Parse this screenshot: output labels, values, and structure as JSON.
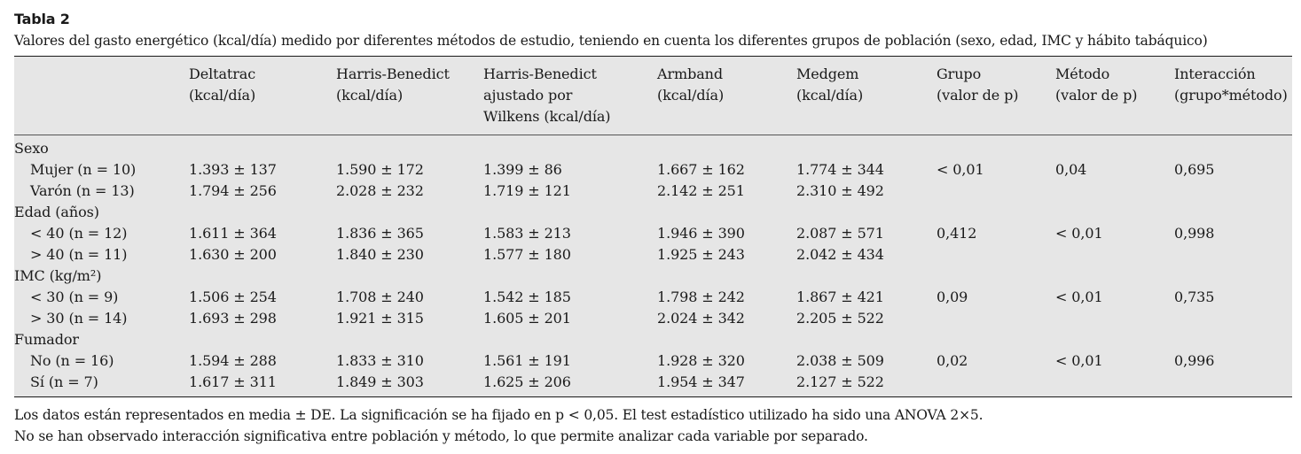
{
  "caption": {
    "label": "Tabla 2",
    "text": "Valores del gasto energético (kcal/día) medido por diferentes métodos de estudio, teniendo en cuenta los diferentes grupos de población (sexo, edad, IMC y hábito tabáquico)"
  },
  "table": {
    "headers": [
      [
        "Deltatrac",
        "(kcal/día)"
      ],
      [
        "Harris-Benedict",
        "(kcal/día)"
      ],
      [
        "Harris-Benedict",
        "ajustado por",
        "Wilkens (kcal/día)"
      ],
      [
        "Armband",
        "(kcal/día)"
      ],
      [
        "Medgem",
        "(kcal/día)"
      ],
      [
        "Grupo",
        "(valor de p)"
      ],
      [
        "Método",
        "(valor de p)"
      ],
      [
        "Interacción",
        "(grupo*método)"
      ]
    ],
    "groups": [
      {
        "label": "Sexo",
        "rows": [
          {
            "label": "Mujer (n = 10)",
            "values": [
              "1.393 ± 137",
              "1.590 ± 172",
              "1.399 ± 86",
              "1.667 ± 162",
              "1.774 ± 344"
            ]
          },
          {
            "label": "Varón (n = 13)",
            "values": [
              "1.794 ± 256",
              "2.028 ± 232",
              "1.719 ± 121",
              "2.142 ± 251",
              "2.310 ± 492"
            ]
          }
        ],
        "grupo": "< 0,01",
        "metodo": "0,04",
        "interaccion": "0,695"
      },
      {
        "label": "Edad (años)",
        "rows": [
          {
            "label": "< 40 (n = 12)",
            "values": [
              "1.611 ± 364",
              "1.836 ± 365",
              "1.583 ± 213",
              "1.946 ± 390",
              "2.087 ± 571"
            ]
          },
          {
            "label": "> 40 (n = 11)",
            "values": [
              "1.630 ± 200",
              "1.840 ± 230",
              "1.577 ± 180",
              "1.925 ± 243",
              "2.042 ± 434"
            ]
          }
        ],
        "grupo": "0,412",
        "metodo": "< 0,01",
        "interaccion": "0,998"
      },
      {
        "label": "IMC (kg/m²)",
        "rows": [
          {
            "label": "< 30 (n = 9)",
            "values": [
              "1.506 ± 254",
              "1.708 ± 240",
              "1.542 ± 185",
              "1.798 ± 242",
              "1.867 ± 421"
            ]
          },
          {
            "label": "> 30 (n = 14)",
            "values": [
              "1.693 ± 298",
              "1.921 ± 315",
              "1.605 ± 201",
              "2.024 ± 342",
              "2.205 ± 522"
            ]
          }
        ],
        "grupo": "0,09",
        "metodo": "< 0,01",
        "interaccion": "0,735"
      },
      {
        "label": "Fumador",
        "rows": [
          {
            "label": "No (n = 16)",
            "values": [
              "1.594 ± 288",
              "1.833 ± 310",
              "1.561 ± 191",
              "1.928 ± 320",
              "2.038 ± 509"
            ]
          },
          {
            "label": "Sí (n = 7)",
            "values": [
              "1.617 ± 311",
              "1.849 ± 303",
              "1.625 ± 206",
              "1.954 ± 347",
              "2.127 ± 522"
            ]
          }
        ],
        "grupo": "0,02",
        "metodo": "< 0,01",
        "interaccion": "0,996"
      }
    ]
  },
  "notes": [
    "Los datos están representados en media ± DE. La significación se ha fijado en p < 0,05. El test estadístico utilizado ha sido una ANOVA 2×5.",
    "No se han observado interacción significativa entre población y método, lo que permite analizar cada variable por separado."
  ]
}
